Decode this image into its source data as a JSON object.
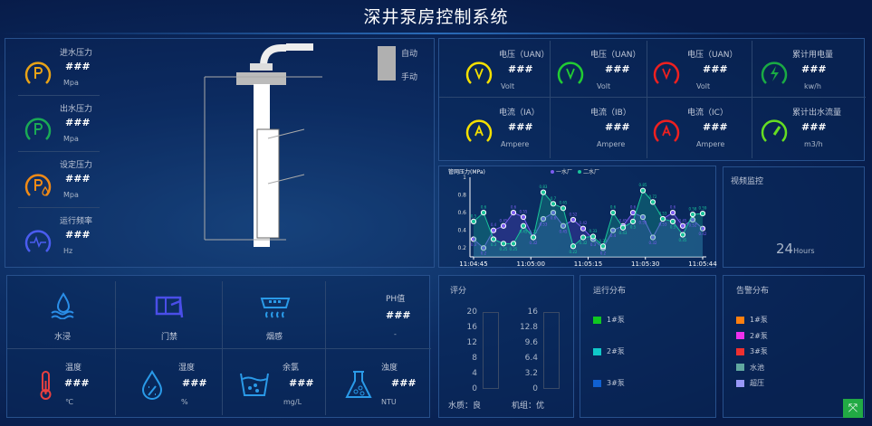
{
  "title": "深井泵房控制系统",
  "left_metrics": [
    {
      "label": "进水压力",
      "value": "###",
      "unit": "Mpa",
      "color": "#e8a317",
      "icon": "P"
    },
    {
      "label": "出水压力",
      "value": "###",
      "unit": "Mpa",
      "color": "#1aaa55",
      "icon": "P"
    },
    {
      "label": "设定压力",
      "value": "###",
      "unit": "Mpa",
      "color": "#f08a16",
      "icon": "P💧"
    },
    {
      "label": "运行频率",
      "value": "###",
      "unit": "Hz",
      "color": "#4a5cf0",
      "icon": "〰"
    }
  ],
  "mode": {
    "auto": "自动",
    "manual": "手动"
  },
  "electric": [
    {
      "label": "电压（UAN）",
      "value": "###",
      "unit": "Volt",
      "color": "#f4e000",
      "icon": "V"
    },
    {
      "label": "电压（UAN）",
      "value": "###",
      "unit": "Volt",
      "color": "#22cc33",
      "icon": "V"
    },
    {
      "label": "电压（UAN）",
      "value": "###",
      "unit": "Volt",
      "color": "#ee2020",
      "icon": "V"
    },
    {
      "label": "累计用电量",
      "value": "###",
      "unit": "kw/h",
      "color": "#1aaa44",
      "icon": "⚡"
    },
    {
      "label": "电流（IA）",
      "value": "###",
      "unit": "Ampere",
      "color": "#f4e000",
      "icon": "A"
    },
    {
      "label": "电流（IB）",
      "value": "###",
      "unit": "Ampere",
      "color": "",
      "icon": ""
    },
    {
      "label": "电流（IC）",
      "value": "###",
      "unit": "Ampere",
      "color": "#ee2020",
      "icon": "A"
    },
    {
      "label": "累计出水流量",
      "value": "###",
      "unit": "m3/h",
      "color": "#66dd22",
      "icon": "gauge"
    }
  ],
  "chart_data": {
    "type": "line",
    "title": "管网压力(MPa)",
    "ylim": [
      0.1,
      1
    ],
    "yticks": [
      "0.2",
      "0.4",
      "0.6",
      "0.8",
      "1"
    ],
    "xticks": [
      "11:04:45",
      "11:05:00",
      "11:05:15",
      "11:05:30",
      "11:05:44"
    ],
    "legend_position": "top",
    "series": [
      {
        "name": "一水厂",
        "color": "#7b5cf0",
        "values": [
          0.3,
          0.2,
          0.4,
          0.45,
          0.6,
          0.55,
          0.32,
          0.53,
          0.6,
          0.45,
          0.52,
          0.42,
          0.3,
          0.2,
          0.4,
          0.45,
          0.6,
          0.55,
          0.32,
          0.53,
          0.6,
          0.45,
          0.52,
          0.42
        ]
      },
      {
        "name": "二水厂",
        "color": "#19c49a",
        "values": [
          0.5,
          0.6,
          0.3,
          0.25,
          0.25,
          0.45,
          0.32,
          0.83,
          0.7,
          0.65,
          0.22,
          0.32,
          0.33,
          0.22,
          0.6,
          0.43,
          0.5,
          0.85,
          0.72,
          0.53,
          0.5,
          0.35,
          0.58,
          0.59
        ]
      }
    ]
  },
  "video": {
    "title": "视频监控",
    "value": "24",
    "unit": "Hours"
  },
  "env": {
    "status": [
      {
        "label": "水浸"
      },
      {
        "label": "门禁"
      },
      {
        "label": "烟感"
      }
    ],
    "ph": {
      "label": "PH值",
      "value": "###",
      "unit": "-"
    },
    "sensors": [
      {
        "label": "温度",
        "value": "###",
        "unit": "℃"
      },
      {
        "label": "湿度",
        "value": "###",
        "unit": "%"
      },
      {
        "label": "余氯",
        "value": "###",
        "unit": "mg/L"
      },
      {
        "label": "浊度",
        "value": "###",
        "unit": "NTU"
      }
    ]
  },
  "score": {
    "title": "评分",
    "water_ticks": [
      "20",
      "16",
      "12",
      "8",
      "4",
      "0"
    ],
    "unit_ticks": [
      "16",
      "12.8",
      "9.6",
      "6.4",
      "3.2",
      "0"
    ],
    "water_label": "水质：良",
    "unit_label": "机组：优"
  },
  "run_dist": {
    "title": "运行分布",
    "items": [
      {
        "label": "1#泵",
        "color": "#10c820"
      },
      {
        "label": "2#泵",
        "color": "#10c8c8"
      },
      {
        "label": "3#泵",
        "color": "#1060d0"
      }
    ]
  },
  "alarm_dist": {
    "title": "告警分布",
    "items": [
      {
        "label": "1#泵",
        "color": "#ff8010"
      },
      {
        "label": "2#泵",
        "color": "#ee30ee"
      },
      {
        "label": "3#泵",
        "color": "#ee3030"
      },
      {
        "label": "水池",
        "color": "#60a8a0"
      },
      {
        "label": "超压",
        "color": "#9898f8"
      }
    ]
  }
}
